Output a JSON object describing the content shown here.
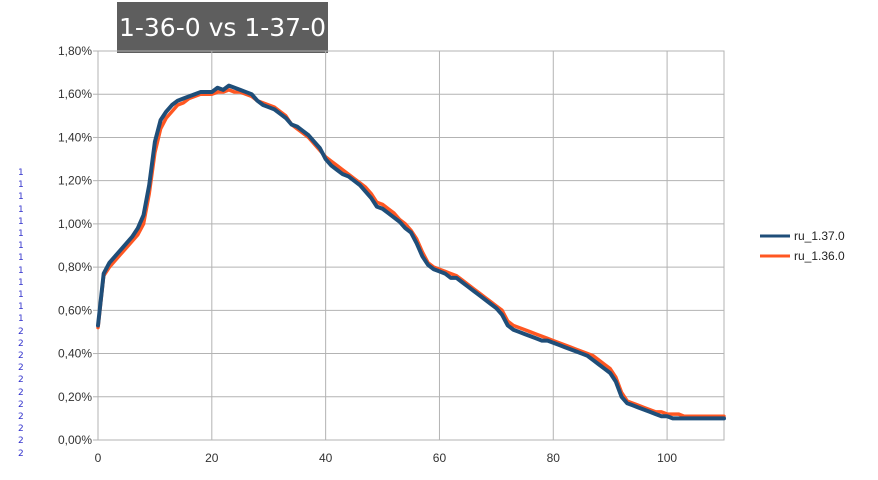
{
  "chart_data": {
    "type": "line",
    "title": "1-36-0 vs 1-37-0",
    "xlabel": "",
    "ylabel": "",
    "xlim": [
      0,
      110
    ],
    "ylim": [
      0,
      0.018
    ],
    "x_ticks": [
      "0",
      "20",
      "40",
      "60",
      "80",
      "100"
    ],
    "y_ticks": [
      "0,00%",
      "0,20%",
      "0,40%",
      "0,60%",
      "0,80%",
      "1,00%",
      "1,20%",
      "1,40%",
      "1,60%",
      "1,80%"
    ],
    "grid": true,
    "legend_position": "right",
    "series": [
      {
        "name": "ru_1.37.0",
        "color": "#1f4e79",
        "x": [
          0,
          1,
          2,
          3,
          4,
          5,
          6,
          7,
          8,
          9,
          10,
          11,
          12,
          13,
          14,
          15,
          16,
          17,
          18,
          19,
          20,
          21,
          22,
          23,
          24,
          25,
          26,
          27,
          28,
          29,
          30,
          31,
          32,
          33,
          34,
          35,
          36,
          37,
          38,
          39,
          40,
          41,
          42,
          43,
          44,
          45,
          46,
          47,
          48,
          49,
          50,
          51,
          52,
          53,
          54,
          55,
          56,
          57,
          58,
          59,
          60,
          61,
          62,
          63,
          64,
          65,
          66,
          67,
          68,
          69,
          70,
          71,
          72,
          73,
          74,
          75,
          76,
          77,
          78,
          79,
          80,
          81,
          82,
          83,
          84,
          85,
          86,
          87,
          88,
          89,
          90,
          91,
          92,
          93,
          94,
          95,
          96,
          97,
          98,
          99,
          100,
          101,
          102,
          103,
          104,
          105,
          106,
          107,
          108,
          109,
          110
        ],
        "values": [
          0.0053,
          0.0077,
          0.0082,
          0.0085,
          0.0088,
          0.0091,
          0.0094,
          0.0098,
          0.0104,
          0.0118,
          0.0138,
          0.0148,
          0.0152,
          0.0155,
          0.0157,
          0.0158,
          0.0159,
          0.016,
          0.0161,
          0.0161,
          0.0161,
          0.0163,
          0.0162,
          0.0164,
          0.0163,
          0.0162,
          0.0161,
          0.016,
          0.0157,
          0.0155,
          0.0154,
          0.0153,
          0.0151,
          0.0149,
          0.0146,
          0.0145,
          0.0143,
          0.0141,
          0.0138,
          0.0135,
          0.013,
          0.0127,
          0.0125,
          0.0123,
          0.0122,
          0.012,
          0.0118,
          0.0115,
          0.0112,
          0.0108,
          0.0107,
          0.0105,
          0.0103,
          0.0101,
          0.0098,
          0.0096,
          0.0091,
          0.0085,
          0.0081,
          0.0079,
          0.0078,
          0.0077,
          0.0075,
          0.0075,
          0.0073,
          0.0071,
          0.0069,
          0.0067,
          0.0065,
          0.0063,
          0.0061,
          0.0058,
          0.0053,
          0.0051,
          0.005,
          0.0049,
          0.0048,
          0.0047,
          0.0046,
          0.0046,
          0.0045,
          0.0044,
          0.0043,
          0.0042,
          0.0041,
          0.004,
          0.0039,
          0.0037,
          0.0035,
          0.0033,
          0.0031,
          0.0027,
          0.002,
          0.0017,
          0.0016,
          0.0015,
          0.0014,
          0.0013,
          0.0012,
          0.0011,
          0.0011,
          0.001,
          0.001,
          0.001,
          0.001,
          0.001,
          0.001,
          0.001,
          0.001,
          0.001,
          0.001
        ]
      },
      {
        "name": "ru_1.36.0",
        "color": "#ff5722",
        "x": [
          0,
          1,
          2,
          3,
          4,
          5,
          6,
          7,
          8,
          9,
          10,
          11,
          12,
          13,
          14,
          15,
          16,
          17,
          18,
          19,
          20,
          21,
          22,
          23,
          24,
          25,
          26,
          27,
          28,
          29,
          30,
          31,
          32,
          33,
          34,
          35,
          36,
          37,
          38,
          39,
          40,
          41,
          42,
          43,
          44,
          45,
          46,
          47,
          48,
          49,
          50,
          51,
          52,
          53,
          54,
          55,
          56,
          57,
          58,
          59,
          60,
          61,
          62,
          63,
          64,
          65,
          66,
          67,
          68,
          69,
          70,
          71,
          72,
          73,
          74,
          75,
          76,
          77,
          78,
          79,
          80,
          81,
          82,
          83,
          84,
          85,
          86,
          87,
          88,
          89,
          90,
          91,
          92,
          93,
          94,
          95,
          96,
          97,
          98,
          99,
          100,
          101,
          102,
          103,
          104,
          105,
          106,
          107,
          108,
          109,
          110
        ],
        "values": [
          0.0052,
          0.0076,
          0.008,
          0.0083,
          0.0086,
          0.0089,
          0.0092,
          0.0095,
          0.01,
          0.0114,
          0.0133,
          0.0144,
          0.0149,
          0.0152,
          0.0155,
          0.0156,
          0.0158,
          0.0159,
          0.016,
          0.016,
          0.016,
          0.0161,
          0.0161,
          0.0162,
          0.0161,
          0.0161,
          0.016,
          0.0159,
          0.0157,
          0.0156,
          0.0155,
          0.0154,
          0.0152,
          0.015,
          0.0146,
          0.0144,
          0.0142,
          0.014,
          0.0137,
          0.0134,
          0.0131,
          0.0129,
          0.0127,
          0.0125,
          0.0123,
          0.0121,
          0.0119,
          0.0117,
          0.0114,
          0.011,
          0.0109,
          0.0107,
          0.0105,
          0.0102,
          0.01,
          0.0097,
          0.0093,
          0.0087,
          0.0082,
          0.008,
          0.0079,
          0.0078,
          0.0077,
          0.0076,
          0.0074,
          0.0072,
          0.007,
          0.0068,
          0.0066,
          0.0064,
          0.0062,
          0.006,
          0.0055,
          0.0053,
          0.0052,
          0.0051,
          0.005,
          0.0049,
          0.0048,
          0.0047,
          0.0046,
          0.0045,
          0.0044,
          0.0043,
          0.0042,
          0.0041,
          0.004,
          0.0039,
          0.0037,
          0.0035,
          0.0033,
          0.0029,
          0.0022,
          0.0018,
          0.0017,
          0.0016,
          0.0015,
          0.0014,
          0.0013,
          0.0013,
          0.0012,
          0.0012,
          0.0012,
          0.0011,
          0.0011,
          0.0011,
          0.0011,
          0.0011,
          0.0011,
          0.0011,
          0.0011
        ]
      }
    ]
  },
  "side_marks": [
    "1",
    "1",
    "1",
    "1",
    "1",
    "1",
    "1",
    "1",
    "1",
    "1",
    "1",
    "1",
    "1",
    "2",
    "2",
    "2",
    "2",
    "2",
    "2",
    "2",
    "2",
    "2",
    "2",
    "2"
  ]
}
